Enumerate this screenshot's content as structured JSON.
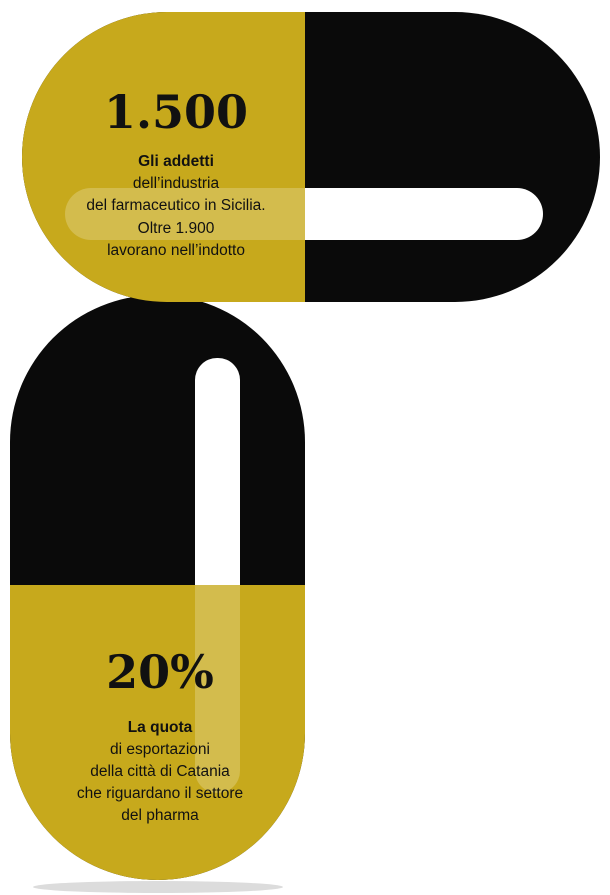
{
  "items": [
    {
      "figure": "1.500",
      "lines": [
        "Gli addetti",
        "dell’industria",
        "del farmaceutico in Sicilia.",
        "Oltre 1.900",
        "lavorano nell’indotto"
      ]
    },
    {
      "figure": "20%",
      "lines": [
        "La quota",
        "di esportazioni",
        "della città di Catania",
        "che riguardano il settore",
        "del pharma"
      ]
    }
  ]
}
